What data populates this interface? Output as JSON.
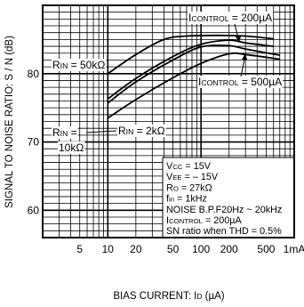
{
  "chart_data": {
    "type": "line",
    "xlabel": "BIAS CURRENT: I",
    "xlabel_sub": "D",
    "xlabel_unit": " (µA)",
    "ylabel": "SIGNAL TO NOISE RATIO: S / N (dB)",
    "x_scale": "log",
    "xlim": [
      2,
      1000
    ],
    "ylim": [
      56,
      90
    ],
    "grid": true,
    "x_ticks": [
      {
        "value": 5,
        "label": "5"
      },
      {
        "value": 10,
        "label": "10"
      },
      {
        "value": 20,
        "label": "20"
      },
      {
        "value": 50,
        "label": "50"
      },
      {
        "value": 100,
        "label": "100"
      },
      {
        "value": 200,
        "label": "200"
      },
      {
        "value": 500,
        "label": "500"
      },
      {
        "value": 1000,
        "label": "1mA"
      }
    ],
    "y_ticks": [
      {
        "value": 60,
        "label": "60"
      },
      {
        "value": 70,
        "label": "70"
      },
      {
        "value": 80,
        "label": "80"
      }
    ],
    "series": [
      {
        "group": "ICONTROL = 200µA",
        "points": [
          [
            10,
            80
          ],
          [
            20,
            82.8
          ],
          [
            40,
            85
          ],
          [
            70,
            85.5
          ],
          [
            150,
            85.6
          ],
          [
            300,
            85.5
          ],
          [
            600,
            85.1
          ]
        ]
      },
      {
        "group": "ICONTROL = 200µA",
        "points": [
          [
            10,
            76.3
          ],
          [
            20,
            79.3
          ],
          [
            50,
            82.5
          ],
          [
            100,
            84.3
          ],
          [
            200,
            84.9
          ],
          [
            300,
            84.5
          ],
          [
            600,
            84
          ]
        ]
      },
      {
        "group": "ICONTROL = 500µA",
        "points": [
          [
            10,
            75.7
          ],
          [
            20,
            78.8
          ],
          [
            50,
            82
          ],
          [
            100,
            83.9
          ],
          [
            200,
            84.1
          ],
          [
            300,
            83.6
          ],
          [
            700,
            82.7
          ]
        ]
      },
      {
        "group": "ICONTROL = 500µA",
        "points": [
          [
            10,
            73.5
          ],
          [
            20,
            76.2
          ],
          [
            50,
            79.4
          ],
          [
            100,
            81.5
          ],
          [
            200,
            82.9
          ],
          [
            300,
            82.8
          ],
          [
            700,
            82.1
          ]
        ]
      }
    ],
    "labels": {
      "icontrol_200": {
        "main": "I",
        "sub": "CONTROL",
        "rest": " = 200µA"
      },
      "icontrol_500": {
        "main": "I",
        "sub": "CONTROL",
        "rest": " = 500µA"
      },
      "rin_50k": {
        "main": "R",
        "sub": "IN",
        "rest": " = 50kΩ"
      },
      "rin_10k_a": {
        "main": "R",
        "sub": "IN",
        "rest": " ="
      },
      "rin_10k_b": "10kΩ",
      "rin_2k": {
        "main": "R",
        "sub": "IN",
        "rest": " = 2kΩ"
      }
    },
    "conditions": [
      {
        "main": "V",
        "sub": "CC",
        "rest": " = 15V"
      },
      {
        "main": "V",
        "sub": "EE",
        "rest": " = – 15V"
      },
      {
        "main": "R",
        "sub": "O",
        "rest": " = 27kΩ"
      },
      {
        "main": "f",
        "sub": "in",
        "rest": " = 1kHz"
      },
      {
        "main": "NOISE B.P.F20Hz ~ 20kHz",
        "sub": "",
        "rest": ""
      },
      {
        "main": "I",
        "sub": "CONTROL",
        "rest": " = 200µA"
      },
      {
        "main": "SN ratio when THD = 0.5%",
        "sub": "",
        "rest": ""
      }
    ]
  }
}
